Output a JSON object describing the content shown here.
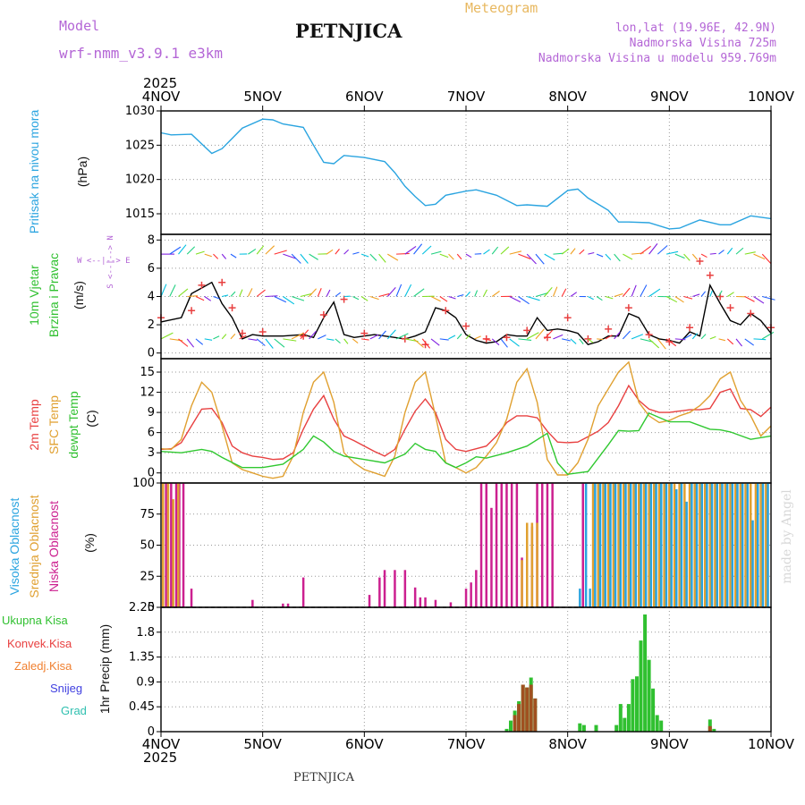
{
  "header": {
    "model_label": "Model",
    "model_name": "wrf-nmm_v3.9.1 e3km",
    "title": "PETNJICA",
    "meteogram": "Meteogram",
    "lonlat": "lon,lat (19.96E, 42.9N)",
    "altitude": "Nadmorska Visina 725m",
    "model_altitude": "Nadmorska Visina u modelu 959.769m",
    "year_top": "2025",
    "year_bottom": "2025",
    "footer": "PETNJICA",
    "credit": "made by Angel"
  },
  "colors": {
    "pressure": "#2aa4e0",
    "temp2m": "#e84040",
    "sfc": "#e0a030",
    "dewpt": "#30c830",
    "high": "#2aa4e0",
    "mid": "#e0a030",
    "low": "#cc2090",
    "rain": "#30c030",
    "conv": "#e84040",
    "froz": "#f08030",
    "snow": "#4040e0",
    "grad": "#30c0b0",
    "wind_black": "#000000",
    "label_purple": "#b466d6"
  },
  "time_axis": {
    "ticks": [
      "4NOV",
      "5NOV",
      "6NOV",
      "7NOV",
      "8NOV",
      "9NOV",
      "10NOV"
    ]
  },
  "legend": {
    "wind_dir": "W <--|--> E",
    "wind_dir2": "S <--|--> N",
    "pressure": "Pritisak na nivou mora",
    "pressure_unit": "(hPa)",
    "wind1": "10m Vjetar",
    "wind2": "Brzina i Pravac",
    "wind_unit": "(m/s)",
    "temp1": "2m Temp",
    "temp2": "SFC Temp",
    "temp3": "dewpt Temp",
    "temp_unit": "(C)",
    "cloud1": "Visoka Oblacnost",
    "cloud2": "Srednja Oblacnost",
    "cloud3": "Niska Oblacnost",
    "cloud_unit": "(%)",
    "precip_unit": "1hr Precip (mm)",
    "p_total": "Ukupna Kisa",
    "p_conv": "Konvek.Kisa",
    "p_froz": "Zaledj.Kisa",
    "p_snow": "Snijeg",
    "p_grad": "Grad"
  },
  "chart_data": [
    {
      "type": "line",
      "title": "Pritisak na nivou mora",
      "ylabel": "hPa",
      "ylim": [
        1012,
        1030
      ],
      "yticks": [
        1015,
        1020,
        1025,
        1030
      ],
      "x_unit": "days since 4NOV 00UTC",
      "series": [
        {
          "name": "pressure",
          "x": [
            0,
            0.1,
            0.3,
            0.5,
            0.6,
            0.8,
            1.0,
            1.1,
            1.2,
            1.4,
            1.5,
            1.6,
            1.7,
            1.8,
            2.0,
            2.2,
            2.3,
            2.4,
            2.5,
            2.6,
            2.7,
            2.8,
            3.0,
            3.1,
            3.3,
            3.5,
            3.6,
            3.8,
            4.0,
            4.1,
            4.2,
            4.4,
            4.5,
            4.6,
            4.8,
            5.0,
            5.1,
            5.3,
            5.5,
            5.6,
            5.8,
            6.0
          ],
          "values": [
            1026.8,
            1026.5,
            1026.6,
            1023.8,
            1024.5,
            1027.5,
            1028.8,
            1028.7,
            1028.1,
            1027.6,
            1025,
            1022.5,
            1022.3,
            1023.5,
            1023.2,
            1022.6,
            1021,
            1019,
            1017.5,
            1016.2,
            1016.4,
            1017.7,
            1018.3,
            1018.5,
            1017.7,
            1016.2,
            1016.3,
            1016.1,
            1018.4,
            1018.6,
            1017.3,
            1015.5,
            1013.8,
            1013.8,
            1013.7,
            1012.8,
            1012.9,
            1014.1,
            1013.4,
            1013.4,
            1014.7,
            1014.3
          ]
        }
      ]
    },
    {
      "type": "line",
      "title": "10m Vjetar Brzina i Pravac",
      "ylabel": "m/s",
      "ylim": [
        -0.4,
        8.4
      ],
      "yticks": [
        0,
        2,
        4,
        6,
        8
      ],
      "series": [
        {
          "name": "wind speed",
          "x": [
            0,
            0.2,
            0.3,
            0.4,
            0.5,
            0.6,
            0.7,
            0.8,
            0.9,
            1.0,
            1.2,
            1.4,
            1.5,
            1.6,
            1.7,
            1.8,
            1.9,
            2.0,
            2.1,
            2.2,
            2.4,
            2.5,
            2.6,
            2.7,
            2.8,
            2.9,
            3.0,
            3.1,
            3.2,
            3.3,
            3.4,
            3.5,
            3.6,
            3.7,
            3.8,
            3.9,
            4.0,
            4.1,
            4.2,
            4.3,
            4.4,
            4.5,
            4.6,
            4.7,
            4.8,
            4.9,
            5.0,
            5.1,
            5.2,
            5.3,
            5.4,
            5.5,
            5.6,
            5.7,
            5.8,
            5.9,
            6.0
          ],
          "values": [
            2.2,
            2.5,
            4.2,
            4.6,
            5.0,
            3.5,
            2.5,
            1.0,
            1.3,
            1.2,
            1.2,
            1.3,
            1.1,
            2.5,
            3.6,
            1.3,
            1.1,
            1.2,
            1.3,
            1.2,
            1.0,
            1.2,
            1.5,
            3.2,
            3.0,
            2.5,
            1.3,
            0.9,
            0.7,
            0.8,
            1.3,
            1.2,
            1.2,
            2.5,
            1.6,
            1.7,
            1.6,
            1.4,
            0.6,
            0.8,
            1.2,
            1.2,
            2.8,
            2.5,
            1.3,
            1.0,
            0.9,
            0.7,
            1.5,
            1.2,
            4.8,
            3.5,
            2.3,
            2.0,
            2.8,
            2.3,
            1.4
          ]
        },
        {
          "name": "wind gust markers",
          "x": [
            0,
            0.3,
            0.4,
            0.6,
            0.7,
            0.8,
            1.0,
            1.4,
            1.6,
            1.8,
            2.0,
            2.4,
            2.6,
            2.8,
            3.0,
            3.2,
            3.4,
            3.6,
            3.8,
            4.0,
            4.2,
            4.4,
            4.6,
            4.8,
            5.0,
            5.2,
            5.3,
            5.4,
            5.5,
            5.6,
            5.8,
            6.0
          ],
          "values": [
            2.5,
            3.0,
            4.8,
            5.0,
            3.2,
            1.4,
            1.5,
            1.2,
            2.7,
            3.8,
            1.4,
            1.0,
            0.6,
            3.0,
            1.9,
            1.0,
            1.1,
            1.6,
            1.1,
            2.5,
            1.0,
            1.7,
            3.2,
            1.3,
            0.8,
            1.8,
            6.5,
            5.5,
            4.0,
            3.2,
            2.8,
            1.8
          ]
        }
      ]
    },
    {
      "type": "line",
      "title": "Temperature",
      "ylabel": "C",
      "ylim": [
        -1.5,
        17
      ],
      "yticks": [
        0,
        3,
        6,
        9,
        12,
        15
      ],
      "series": [
        {
          "name": "2m Temp",
          "x": [
            0,
            0.1,
            0.2,
            0.3,
            0.4,
            0.5,
            0.6,
            0.7,
            0.8,
            0.9,
            1.0,
            1.1,
            1.2,
            1.3,
            1.4,
            1.5,
            1.6,
            1.7,
            1.8,
            1.9,
            2.0,
            2.1,
            2.2,
            2.3,
            2.4,
            2.5,
            2.6,
            2.7,
            2.8,
            2.9,
            3.0,
            3.1,
            3.2,
            3.3,
            3.4,
            3.5,
            3.6,
            3.7,
            3.8,
            3.9,
            4.0,
            4.1,
            4.2,
            4.3,
            4.4,
            4.5,
            4.6,
            4.7,
            4.8,
            4.9,
            5.0,
            5.1,
            5.2,
            5.3,
            5.4,
            5.5,
            5.6,
            5.7,
            5.8,
            5.9,
            6.0
          ],
          "values": [
            3.5,
            3.6,
            4.5,
            7,
            9.5,
            9.6,
            7.5,
            4,
            3,
            2.5,
            2.3,
            2,
            2.1,
            3,
            6.5,
            9.5,
            11.5,
            8,
            5.5,
            4.8,
            4,
            3.2,
            2.5,
            3.5,
            6.5,
            9.2,
            11,
            9,
            5,
            3.5,
            3.2,
            3.6,
            4,
            5.5,
            7.5,
            8.5,
            8.5,
            8.2,
            6.2,
            4.6,
            4.5,
            4.6,
            5.4,
            6.2,
            7.5,
            10,
            13,
            10.8,
            9.5,
            9,
            9,
            9.2,
            9.4,
            9.4,
            9.6,
            12,
            12.5,
            9.6,
            9.4,
            8.4,
            9.8
          ]
        },
        {
          "name": "SFC Temp",
          "x": [
            0,
            0.1,
            0.2,
            0.3,
            0.4,
            0.5,
            0.6,
            0.7,
            0.8,
            0.9,
            1.0,
            1.1,
            1.2,
            1.3,
            1.4,
            1.5,
            1.6,
            1.7,
            1.8,
            1.9,
            2.0,
            2.1,
            2.2,
            2.3,
            2.4,
            2.5,
            2.6,
            2.7,
            2.8,
            2.9,
            3.0,
            3.1,
            3.2,
            3.3,
            3.4,
            3.5,
            3.6,
            3.7,
            3.8,
            3.9,
            4.0,
            4.1,
            4.2,
            4.3,
            4.4,
            4.5,
            4.6,
            4.7,
            4.8,
            4.9,
            5.0,
            5.1,
            5.2,
            5.3,
            5.4,
            5.5,
            5.6,
            5.7,
            5.8,
            5.9,
            6.0
          ],
          "values": [
            3.6,
            3.5,
            5,
            10,
            13.5,
            12,
            7,
            1.5,
            0.5,
            0,
            -0.5,
            -0.8,
            -0.5,
            2.5,
            9,
            13.5,
            15,
            10.5,
            3,
            1.5,
            0.5,
            0,
            -0.5,
            2.5,
            9,
            13.5,
            15,
            8.5,
            1.5,
            0.8,
            0,
            0.8,
            2.5,
            4.5,
            8,
            13.5,
            15.5,
            10.5,
            2,
            -0.3,
            -0.3,
            1.5,
            5,
            10,
            12.5,
            15,
            16.5,
            10.5,
            8.5,
            7.5,
            7.8,
            8.5,
            9,
            10,
            11.5,
            14,
            15,
            10.8,
            8.5,
            5.5,
            7
          ]
        },
        {
          "name": "dewpt Temp",
          "x": [
            0,
            0.2,
            0.4,
            0.5,
            0.6,
            0.8,
            1.0,
            1.2,
            1.4,
            1.5,
            1.6,
            1.7,
            1.8,
            2.0,
            2.2,
            2.4,
            2.5,
            2.6,
            2.7,
            2.8,
            2.9,
            3.0,
            3.1,
            3.2,
            3.4,
            3.6,
            3.8,
            3.9,
            4.0,
            4.2,
            4.4,
            4.5,
            4.6,
            4.7,
            4.8,
            5.0,
            5.2,
            5.4,
            5.5,
            5.6,
            5.8,
            6.0
          ],
          "values": [
            3.2,
            3,
            3.5,
            3.2,
            2.3,
            0.8,
            0.8,
            1.3,
            3.5,
            5.5,
            4.6,
            3.2,
            2.5,
            2,
            1.5,
            2.8,
            4.4,
            3.5,
            3.2,
            1.5,
            0.8,
            1.5,
            2.4,
            2.2,
            3,
            4,
            5.9,
            1.5,
            -0.2,
            0.2,
            4.2,
            6.3,
            6.2,
            6.3,
            8.9,
            7.6,
            7.6,
            6.5,
            6.4,
            6.1,
            5,
            5.5
          ]
        }
      ]
    },
    {
      "type": "bar",
      "title": "Oblacnost",
      "ylabel": "%",
      "ylim": [
        0,
        100
      ],
      "yticks": [
        0,
        25,
        50,
        75,
        100
      ],
      "series": [
        {
          "name": "Niska Oblacnost",
          "x": [
            0.05,
            0.1,
            0.15,
            0.18,
            0.22,
            0.3,
            0.9,
            1.2,
            1.25,
            1.4,
            2.05,
            2.15,
            2.2,
            2.3,
            2.4,
            2.5,
            2.55,
            2.6,
            2.7,
            2.85,
            3.0,
            3.05,
            3.1,
            3.15,
            3.2,
            3.25,
            3.3,
            3.35,
            3.4,
            3.45,
            3.5,
            3.55,
            3.6,
            3.65,
            3.7,
            3.75,
            3.8,
            3.85,
            4.15
          ],
          "values": [
            100,
            100,
            100,
            100,
            100,
            15,
            6,
            3,
            3,
            24,
            10,
            24,
            30,
            30,
            30,
            16,
            8,
            8,
            6,
            4,
            15,
            20,
            30,
            100,
            100,
            80,
            100,
            100,
            100,
            100,
            100,
            40,
            65,
            65,
            100,
            100,
            100,
            100,
            100
          ]
        },
        {
          "name": "Srednja Oblacnost",
          "x": [
            0.02,
            0.07,
            0.12,
            0.17,
            3.55,
            3.6,
            3.65,
            3.7,
            4.25,
            4.3,
            4.35,
            4.4,
            4.45,
            4.5,
            4.55,
            4.6,
            4.65,
            4.7,
            4.75,
            4.8,
            4.85,
            4.9,
            4.95,
            5.0,
            5.05,
            5.1,
            5.15,
            5.2,
            5.25,
            5.3,
            5.35,
            5.4,
            5.45,
            5.5,
            5.55,
            5.6,
            5.65,
            5.7,
            5.75,
            5.8,
            5.85,
            5.9,
            5.95
          ],
          "values": [
            100,
            100,
            87,
            100,
            38,
            68,
            68,
            68,
            100,
            100,
            100,
            100,
            100,
            100,
            100,
            100,
            100,
            100,
            100,
            100,
            100,
            100,
            100,
            100,
            100,
            100,
            100,
            100,
            100,
            100,
            100,
            100,
            100,
            100,
            100,
            100,
            100,
            100,
            100,
            100,
            100,
            100,
            100
          ]
        },
        {
          "name": "Visoka Oblacnost",
          "x": [
            4.12,
            4.18,
            4.22,
            4.27,
            4.32,
            4.37,
            4.42,
            4.47,
            4.52,
            4.57,
            4.62,
            4.67,
            4.72,
            4.77,
            4.82,
            4.87,
            4.92,
            4.97,
            5.02,
            5.07,
            5.12,
            5.17,
            5.22,
            5.27,
            5.32,
            5.37,
            5.42,
            5.47,
            5.52,
            5.57,
            5.62,
            5.67,
            5.72,
            5.77,
            5.82,
            5.87,
            5.92,
            5.97
          ],
          "values": [
            15,
            100,
            15,
            100,
            100,
            100,
            100,
            100,
            100,
            100,
            100,
            100,
            100,
            100,
            100,
            100,
            100,
            100,
            100,
            95,
            100,
            85,
            100,
            100,
            100,
            100,
            100,
            100,
            100,
            100,
            100,
            100,
            100,
            100,
            70,
            100,
            100,
            100
          ]
        }
      ]
    },
    {
      "type": "bar",
      "title": "1hr Precip",
      "ylabel": "mm",
      "ylim": [
        0,
        2.25
      ],
      "yticks": [
        0,
        0.45,
        0.9,
        1.35,
        1.8,
        2.25
      ],
      "series": [
        {
          "name": "Ukupna Kisa",
          "x": [
            3.4,
            3.44,
            3.48,
            3.52,
            3.56,
            3.6,
            3.64,
            3.68,
            4.12,
            4.16,
            4.28,
            4.48,
            4.52,
            4.56,
            4.6,
            4.64,
            4.68,
            4.72,
            4.76,
            4.8,
            4.84,
            4.88,
            4.92,
            5.4,
            5.44
          ],
          "values": [
            0.05,
            0.2,
            0.38,
            0.55,
            0.85,
            0.8,
            0.98,
            0.6,
            0.15,
            0.12,
            0.12,
            0.12,
            0.5,
            0.25,
            0.5,
            0.95,
            1.0,
            1.65,
            2.12,
            1.3,
            0.78,
            0.3,
            0.2,
            0.22,
            0.05
          ]
        },
        {
          "name": "Konvek.Kisa",
          "x": [
            3.48,
            3.52,
            3.56,
            3.6,
            3.64,
            3.68,
            5.4
          ],
          "values": [
            0.3,
            0.5,
            0.85,
            0.8,
            0.85,
            0.6,
            0.1
          ]
        }
      ]
    }
  ]
}
